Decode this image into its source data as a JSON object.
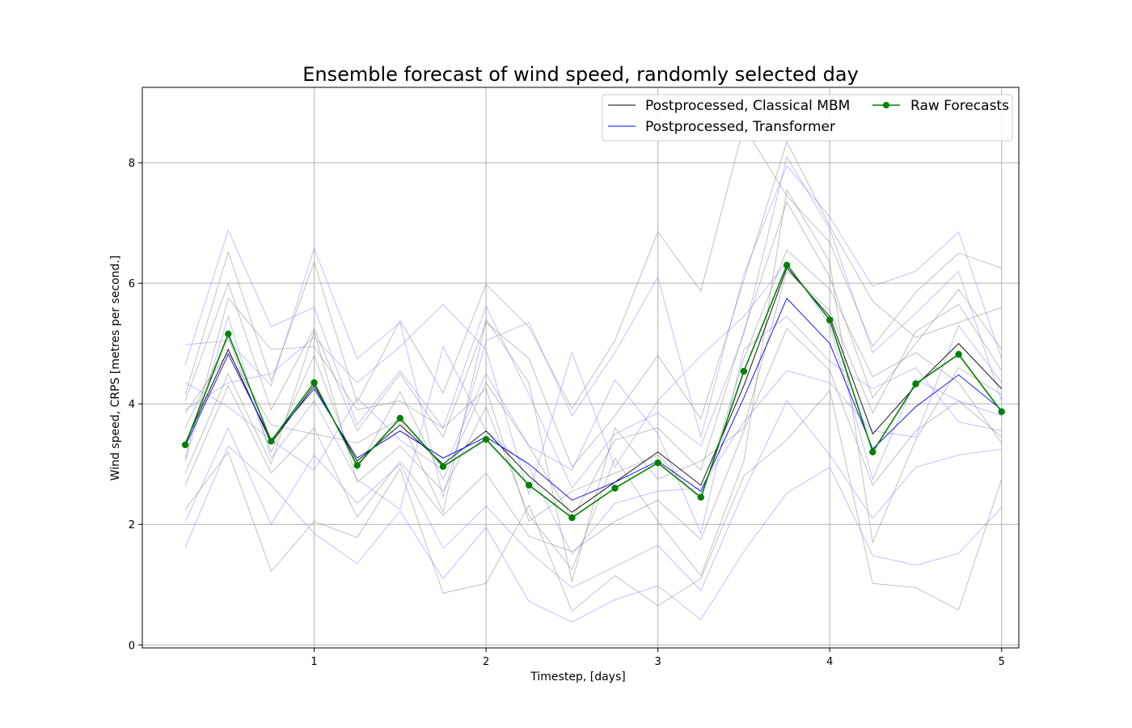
{
  "chart_data": {
    "type": "line",
    "title": "Ensemble forecast of wind speed, randomly selected day",
    "xlabel": "Timestep, [days]",
    "ylabel": "Wind speed, CRPS [metres per second.]",
    "xlim": [
      0.0,
      5.1
    ],
    "ylim": [
      -0.05,
      9.25
    ],
    "xticks": [
      1,
      2,
      3,
      4,
      5
    ],
    "yticks": [
      0,
      2,
      4,
      6,
      8
    ],
    "grid": true,
    "legend_position": "top-right",
    "x": [
      0.25,
      0.5,
      0.75,
      1.0,
      1.25,
      1.5,
      1.75,
      2.0,
      2.25,
      2.5,
      2.75,
      3.0,
      3.25,
      3.5,
      3.75,
      4.0,
      4.25,
      4.5,
      4.75,
      5.0
    ],
    "series": [
      {
        "name": "Postprocessed, Classical MBM",
        "color": "#000000",
        "values": [
          3.35,
          4.9,
          3.35,
          4.3,
          3.05,
          3.65,
          3.0,
          3.55,
          2.8,
          2.2,
          2.7,
          3.2,
          2.65,
          4.3,
          6.25,
          5.45,
          3.5,
          4.3,
          5.0,
          4.25
        ]
      },
      {
        "name": "Postprocessed, Transformer",
        "color": "#0000ff",
        "values": [
          3.3,
          4.82,
          3.4,
          4.25,
          3.1,
          3.55,
          3.1,
          3.45,
          3.0,
          2.4,
          2.7,
          3.05,
          2.55,
          4.1,
          5.75,
          5.0,
          3.25,
          3.95,
          4.48,
          3.9
        ]
      },
      {
        "name": "Raw Forecasts",
        "color": "#008000",
        "marker": "circle",
        "values": [
          3.32,
          5.16,
          3.38,
          4.35,
          2.98,
          3.76,
          2.96,
          3.41,
          2.65,
          2.11,
          2.6,
          3.02,
          2.45,
          4.54,
          6.3,
          5.39,
          3.2,
          4.33,
          4.82,
          3.87
        ]
      }
    ],
    "ensemble_members": [
      {
        "group": "Postprocessed, Classical MBM",
        "color": "#808080",
        "values": [
          4.15,
          6.52,
          4.38,
          6.35,
          4.02,
          5.38,
          4.18,
          5.98,
          5.27,
          3.92,
          5.05,
          6.85,
          5.87,
          8.6,
          7.45,
          6.68,
          4.95,
          5.85,
          6.5,
          6.25
        ]
      },
      {
        "group": "Postprocessed, Classical MBM",
        "color": "#808080",
        "values": [
          2.25,
          3.2,
          1.22,
          2.05,
          1.78,
          2.92,
          0.86,
          1.02,
          2.32,
          0.56,
          1.15,
          0.65,
          1.1,
          2.8,
          3.4,
          4.22,
          1.02,
          0.95,
          0.58,
          2.75
        ]
      },
      {
        "group": "Postprocessed, Classical MBM",
        "color": "#808080",
        "values": [
          3.6,
          5.1,
          3.2,
          4.8,
          2.9,
          4.2,
          2.75,
          4.35,
          3.3,
          2.1,
          3.4,
          3.6,
          2.9,
          5.2,
          7.35,
          6.1,
          4.1,
          5.0,
          5.9,
          4.9
        ]
      },
      {
        "group": "Postprocessed, Classical MBM",
        "color": "#808080",
        "values": [
          2.65,
          4.3,
          2.85,
          3.6,
          2.12,
          3.05,
          2.15,
          2.85,
          1.8,
          1.55,
          2.05,
          2.4,
          1.75,
          3.55,
          5.25,
          4.55,
          2.65,
          3.55,
          4.05,
          3.45
        ]
      },
      {
        "group": "Postprocessed, Classical MBM",
        "color": "#808080",
        "values": [
          4.05,
          6.0,
          3.9,
          5.25,
          3.55,
          4.5,
          3.45,
          5.35,
          4.75,
          2.95,
          3.8,
          4.8,
          3.75,
          6.05,
          8.35,
          6.95,
          5.7,
          5.1,
          5.35,
          5.6
        ]
      },
      {
        "group": "Postprocessed, Classical MBM",
        "color": "#808080",
        "values": [
          3.1,
          5.75,
          4.9,
          4.95,
          3.9,
          4.05,
          3.6,
          4.25,
          2.05,
          2.55,
          2.85,
          3.15,
          2.4,
          4.75,
          6.55,
          5.9,
          4.45,
          4.85,
          4.35,
          3.35
        ]
      },
      {
        "group": "Postprocessed, Classical MBM",
        "color": "#808080",
        "values": [
          2.85,
          4.5,
          3.0,
          5.2,
          2.7,
          3.3,
          2.55,
          3.95,
          2.15,
          1.25,
          3.1,
          2.05,
          1.15,
          3.05,
          7.55,
          6.35,
          1.7,
          3.4,
          4.6,
          4.15
        ]
      },
      {
        "group": "Postprocessed, Classical MBM",
        "color": "#808080",
        "values": [
          3.85,
          4.85,
          3.65,
          3.5,
          3.35,
          3.75,
          2.2,
          5.4,
          4.35,
          1.05,
          3.6,
          2.75,
          3.05,
          3.6,
          6.2,
          5.55,
          3.85,
          5.2,
          5.65,
          4.55
        ]
      },
      {
        "group": "Postprocessed, Transformer",
        "color": "#8080ff",
        "values": [
          4.98,
          5.05,
          4.3,
          6.58,
          4.75,
          5.35,
          2.45,
          5.05,
          5.35,
          3.8,
          4.85,
          6.1,
          3.45,
          6.15,
          7.95,
          7.1,
          5.95,
          6.2,
          6.85,
          4.75
        ]
      },
      {
        "group": "Postprocessed, Transformer",
        "color": "#8080ff",
        "values": [
          1.62,
          3.3,
          2.65,
          1.85,
          1.35,
          2.22,
          1.1,
          1.95,
          0.72,
          0.38,
          0.75,
          0.98,
          0.42,
          1.55,
          2.52,
          2.95,
          1.48,
          1.32,
          1.52,
          2.28
        ]
      },
      {
        "group": "Postprocessed, Transformer",
        "color": "#8080ff",
        "values": [
          4.65,
          6.88,
          5.28,
          5.6,
          3.65,
          4.55,
          3.6,
          5.62,
          4.15,
          2.6,
          3.5,
          3.85,
          3.3,
          5.15,
          8.1,
          6.9,
          4.85,
          5.5,
          6.2,
          4.05
        ]
      },
      {
        "group": "Postprocessed, Transformer",
        "color": "#8080ff",
        "values": [
          2.05,
          3.6,
          2.0,
          3.15,
          2.35,
          3.0,
          1.6,
          2.3,
          1.55,
          0.95,
          1.3,
          1.65,
          0.9,
          2.55,
          4.05,
          3.15,
          2.1,
          2.95,
          3.15,
          3.25
        ]
      },
      {
        "group": "Postprocessed, Transformer",
        "color": "#8080ff",
        "values": [
          3.9,
          4.35,
          4.5,
          5.1,
          4.35,
          4.95,
          5.65,
          4.9,
          2.5,
          4.85,
          2.95,
          4.05,
          4.8,
          5.45,
          6.35,
          5.3,
          2.75,
          4.4,
          4.05,
          3.8
        ]
      },
      {
        "group": "Postprocessed, Transformer",
        "color": "#8080ff",
        "values": [
          3.05,
          5.45,
          3.1,
          4.05,
          2.75,
          2.25,
          4.95,
          3.55,
          2.95,
          1.5,
          2.35,
          2.55,
          2.6,
          3.7,
          4.55,
          4.35,
          3.55,
          3.45,
          5.3,
          4.35
        ]
      },
      {
        "group": "Postprocessed, Transformer",
        "color": "#8080ff",
        "values": [
          4.35,
          3.95,
          3.4,
          2.9,
          4.1,
          3.4,
          2.9,
          4.5,
          3.3,
          2.9,
          4.4,
          3.5,
          1.85,
          4.9,
          5.45,
          4.7,
          4.25,
          4.6,
          3.7,
          3.55
        ]
      }
    ]
  }
}
